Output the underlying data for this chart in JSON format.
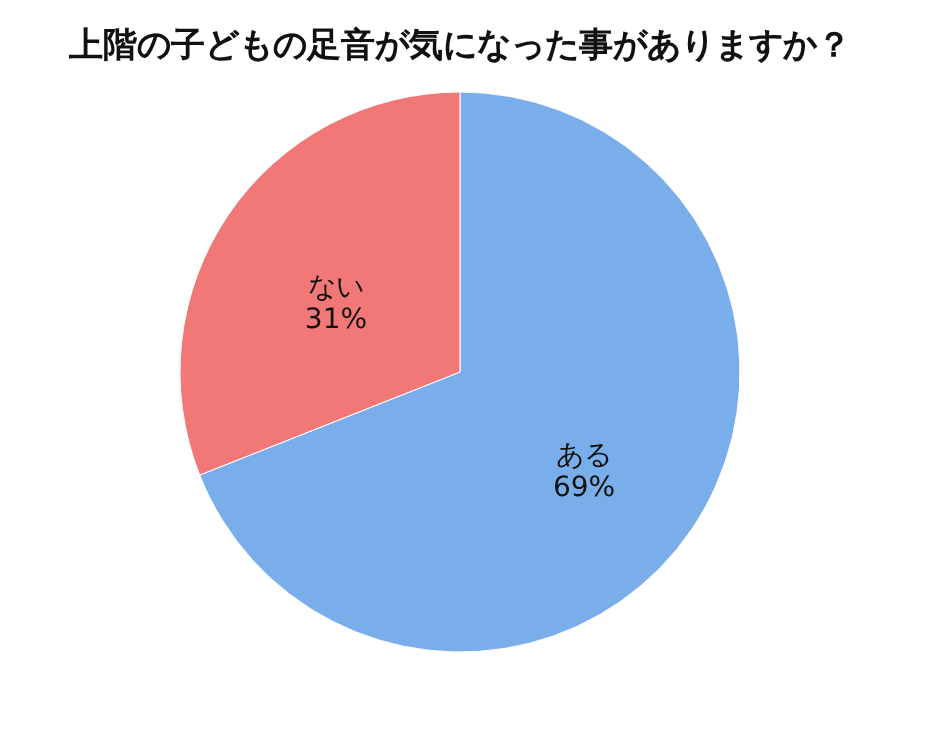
{
  "chart_data": {
    "type": "pie",
    "title": "上階の子どもの足音が気になった事がありますか？",
    "categories": [
      "ある",
      "ない"
    ],
    "values": [
      69,
      31
    ],
    "colors": [
      "#7aaeea",
      "#f27878"
    ],
    "value_labels": [
      "69%",
      "31%"
    ],
    "legend": false
  }
}
